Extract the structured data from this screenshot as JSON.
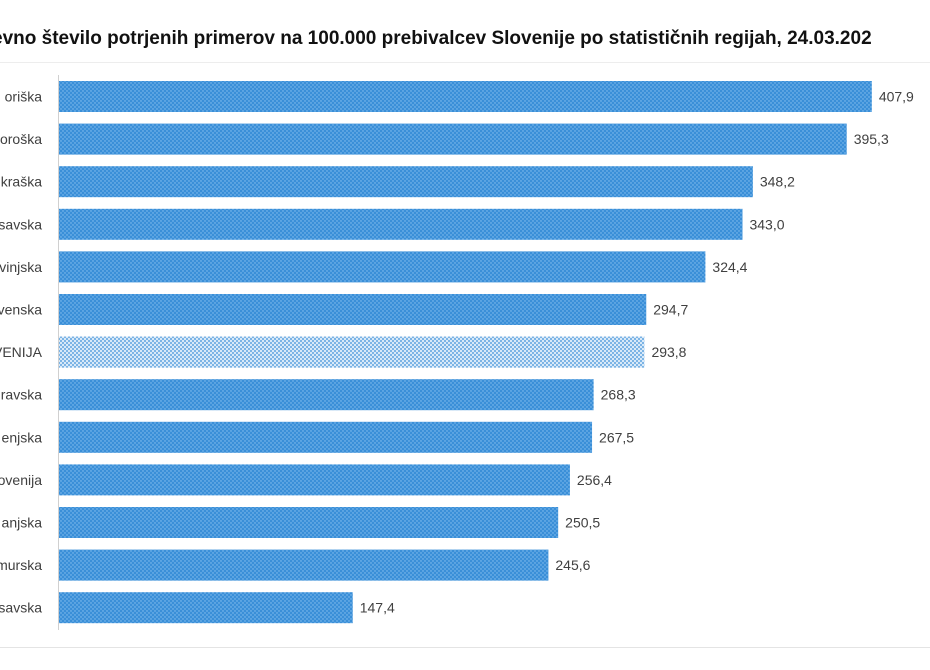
{
  "chart_data": {
    "type": "bar",
    "orientation": "horizontal",
    "title": "evno število potrjenih primerov na 100.000 prebivalcev Slovenije po statističnih regijah, 24.03.202",
    "categories": [
      "oriška",
      "oroška",
      "kraška",
      "savska",
      "vinjska",
      "venska",
      "VENIJA",
      "ravska",
      "enjska",
      "ovenija",
      "anjska",
      "murska",
      "savska"
    ],
    "values": [
      407.9,
      395.3,
      348.2,
      343.0,
      324.4,
      294.7,
      293.8,
      268.3,
      267.5,
      256.4,
      250.5,
      245.6,
      147.4
    ],
    "value_labels": [
      "407,9",
      "395,3",
      "348,2",
      "343,0",
      "324,4",
      "294,7",
      "293,8",
      "268,3",
      "267,5",
      "256,4",
      "250,5",
      "245,6",
      "147,4"
    ],
    "highlight_index": 6,
    "xlim": [
      0,
      410
    ],
    "xlabel": "",
    "ylabel": "",
    "grid": false,
    "legend": "none",
    "colors": {
      "bar": "#3a8fd8",
      "bar_dot": "#8cc3f0",
      "highlight": "#d8e9f8",
      "highlight_dot": "#3a8fd8",
      "axis": "#d0d0d0",
      "text": "#404040"
    }
  }
}
